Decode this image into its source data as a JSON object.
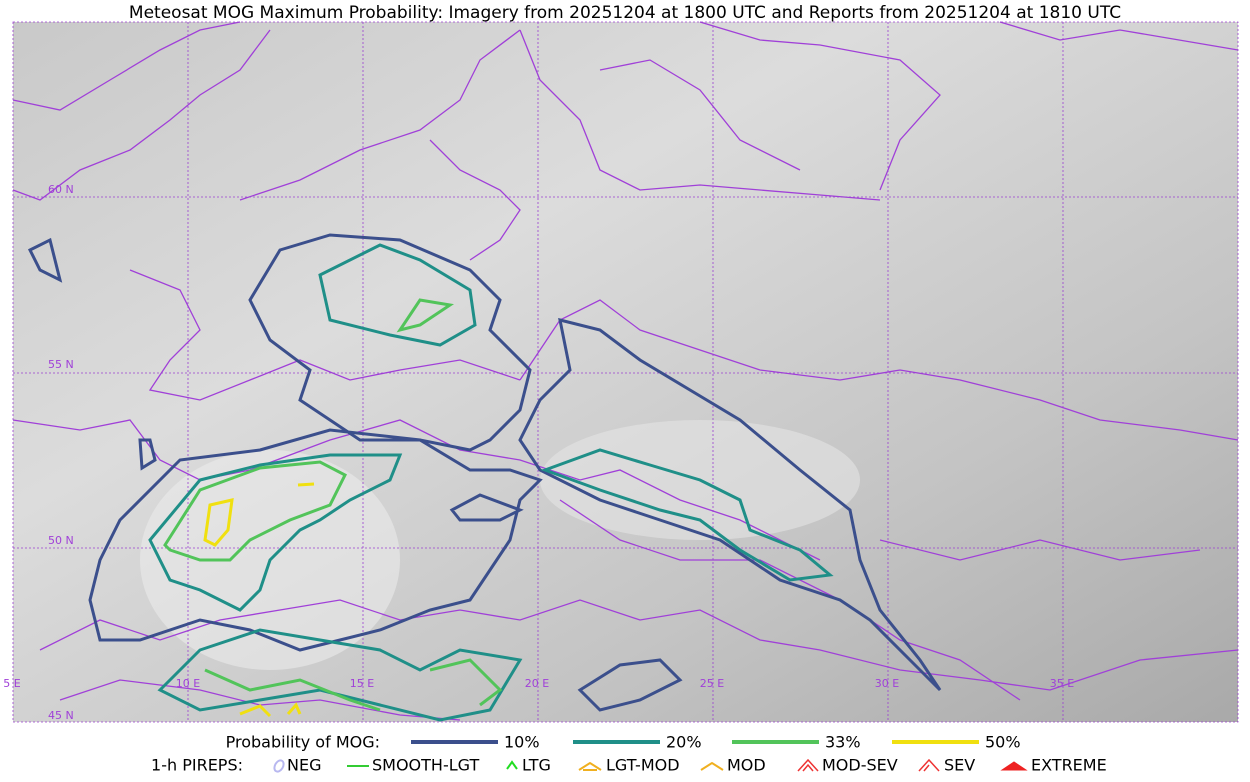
{
  "header": {
    "title": "Meteosat MOG Maximum Probability: Imagery from 20251204 at 1800 UTC and Reports from 20251204 at 1810 UTC"
  },
  "map": {
    "lat_labels": [
      "60 N",
      "55 N",
      "50 N",
      "45 N"
    ],
    "lon_labels": [
      "5 E",
      "10 E",
      "15 E",
      "20 E",
      "25 E",
      "30 E",
      "35 E"
    ]
  },
  "legend": {
    "probability": {
      "title": "Probability of MOG:",
      "items": [
        {
          "label": "10%",
          "color": "#3b4f8c"
        },
        {
          "label": "20%",
          "color": "#1f8f88"
        },
        {
          "label": "33%",
          "color": "#52c45a"
        },
        {
          "label": "50%",
          "color": "#f0e010"
        }
      ]
    },
    "pireps": {
      "title": "1-h PIREPS:",
      "items": [
        {
          "label": "NEG",
          "color": "#b8b8f0"
        },
        {
          "label": "SMOOTH-LGT",
          "color": "#33cc33"
        },
        {
          "label": "LTG",
          "color": "#22dd22"
        },
        {
          "label": "LGT-MOD",
          "color": "#f0b020"
        },
        {
          "label": "MOD",
          "color": "#f0b020"
        },
        {
          "label": "MOD-SEV",
          "color": "#ee3333"
        },
        {
          "label": "SEV",
          "color": "#ee3333"
        },
        {
          "label": "EXTREME",
          "color": "#ee2222"
        }
      ]
    }
  }
}
